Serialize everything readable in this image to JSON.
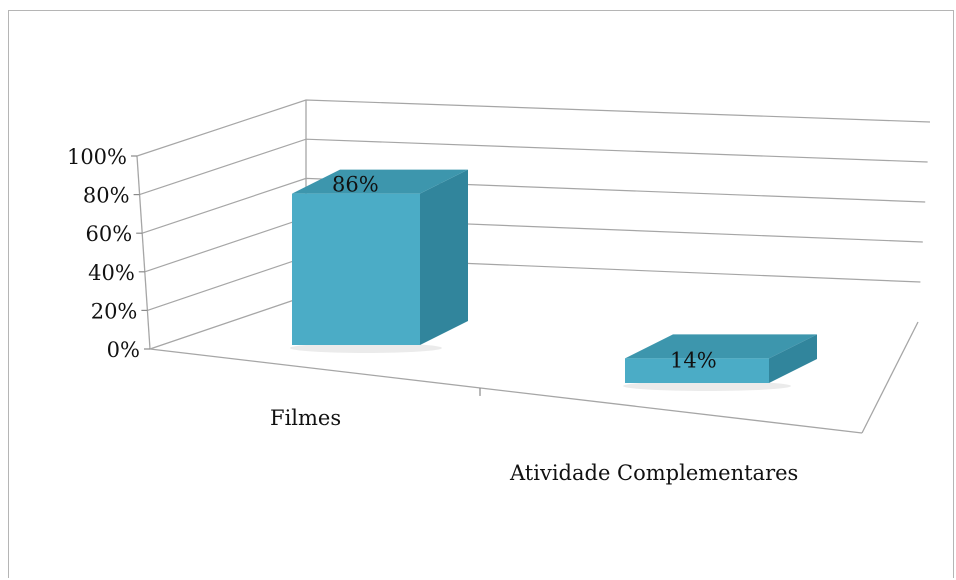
{
  "chart_data": {
    "type": "bar",
    "style": "3d-column",
    "categories": [
      "Filmes",
      "Atividade Complementares"
    ],
    "values": [
      86,
      14
    ],
    "value_labels": [
      "86%",
      "14%"
    ],
    "ylim": [
      0,
      100
    ],
    "y_ticks": [
      "0%",
      "20%",
      "40%",
      "60%",
      "80%",
      "100%"
    ],
    "title": "",
    "xlabel": "",
    "ylabel": "",
    "grid": true,
    "legend": "none",
    "colors": {
      "bar_front": "#4bacc6",
      "bar_side": "#31859c",
      "bar_top": "#3d96ad",
      "grid": "#a6a6a6"
    }
  }
}
